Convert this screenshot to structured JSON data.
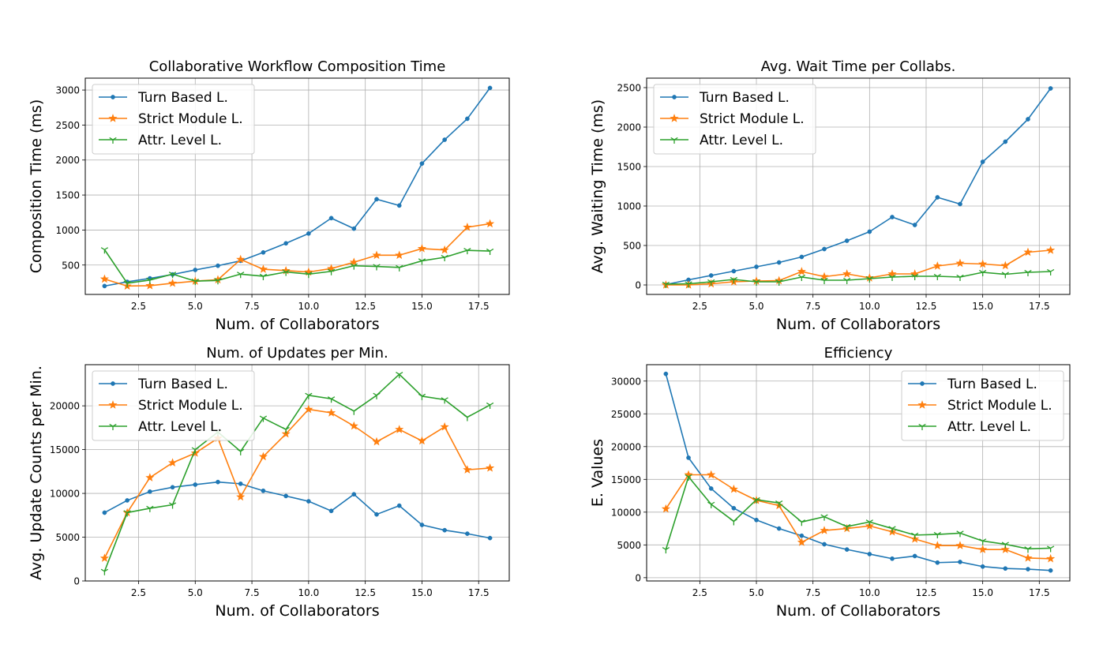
{
  "chart_data": [
    {
      "type": "line",
      "title": "Collaborative Workflow Composition Time",
      "xlabel": "Num. of Collaborators",
      "ylabel": "Composition Time (ms)",
      "xlim": [
        0.15,
        18.85
      ],
      "ylim": [
        80,
        3170
      ],
      "xticks": [
        2.5,
        5.0,
        7.5,
        10.0,
        12.5,
        15.0,
        17.5
      ],
      "yticks": [
        500,
        1000,
        1500,
        2000,
        2500,
        3000
      ],
      "grid": true,
      "legend": "top-left",
      "x": [
        1,
        2,
        3,
        4,
        5,
        6,
        7,
        8,
        9,
        10,
        11,
        12,
        13,
        14,
        15,
        16,
        17,
        18
      ],
      "series": [
        {
          "name": "Turn Based L.",
          "color": "#1f77b4",
          "marker": "dot",
          "values": [
            200,
            260,
            310,
            365,
            430,
            490,
            560,
            680,
            810,
            950,
            1170,
            1020,
            1440,
            1350,
            1950,
            2290,
            2590,
            3030
          ]
        },
        {
          "name": "Strict Module L.",
          "color": "#ff7f0e",
          "marker": "star",
          "values": [
            300,
            200,
            205,
            240,
            270,
            290,
            580,
            440,
            420,
            400,
            450,
            540,
            640,
            640,
            735,
            715,
            1040,
            1090
          ]
        },
        {
          "name": "Attr. Level L.",
          "color": "#2ca02c",
          "marker": "tri",
          "values": [
            720,
            240,
            285,
            370,
            270,
            280,
            370,
            340,
            400,
            370,
            410,
            490,
            480,
            465,
            560,
            610,
            710,
            700
          ]
        }
      ]
    },
    {
      "type": "line",
      "title": "Avg. Wait Time per Collabs.",
      "xlabel": "Num. of Collaborators",
      "ylabel": "Avg. Waiting Time (ms)",
      "xlim": [
        0.15,
        18.85
      ],
      "ylim": [
        -120,
        2620
      ],
      "xticks": [
        2.5,
        5.0,
        7.5,
        10.0,
        12.5,
        15.0,
        17.5
      ],
      "yticks": [
        0,
        500,
        1000,
        1500,
        2000,
        2500
      ],
      "grid": true,
      "legend": "top-left",
      "x": [
        1,
        2,
        3,
        4,
        5,
        6,
        7,
        8,
        9,
        10,
        11,
        12,
        13,
        14,
        15,
        16,
        17,
        18
      ],
      "series": [
        {
          "name": "Turn Based L.",
          "color": "#1f77b4",
          "marker": "dot",
          "values": [
            5,
            65,
            120,
            175,
            230,
            285,
            355,
            455,
            560,
            675,
            860,
            760,
            1110,
            1025,
            1560,
            1815,
            2100,
            2490
          ]
        },
        {
          "name": "Strict Module L.",
          "color": "#ff7f0e",
          "marker": "star",
          "values": [
            0,
            0,
            15,
            40,
            50,
            55,
            170,
            105,
            140,
            90,
            140,
            140,
            240,
            275,
            265,
            245,
            415,
            440
          ]
        },
        {
          "name": "Attr. Level L.",
          "color": "#2ca02c",
          "marker": "tri",
          "values": [
            10,
            15,
            40,
            70,
            40,
            40,
            100,
            60,
            60,
            80,
            100,
            110,
            110,
            100,
            160,
            135,
            160,
            170
          ]
        }
      ]
    },
    {
      "type": "line",
      "title": "Num. of Updates per Min.",
      "xlabel": "Num. of Collaborators",
      "ylabel": "Avg. Update Counts per Min.",
      "xlim": [
        0.15,
        18.85
      ],
      "ylim": [
        0,
        24700
      ],
      "xticks": [
        2.5,
        5.0,
        7.5,
        10.0,
        12.5,
        15.0,
        17.5
      ],
      "yticks": [
        0,
        5000,
        10000,
        15000,
        20000
      ],
      "grid": true,
      "legend": "top-left",
      "x": [
        1,
        2,
        3,
        4,
        5,
        6,
        7,
        8,
        9,
        10,
        11,
        12,
        13,
        14,
        15,
        16,
        17,
        18
      ],
      "series": [
        {
          "name": "Turn Based L.",
          "color": "#1f77b4",
          "marker": "dot",
          "values": [
            7800,
            9200,
            10200,
            10700,
            11000,
            11300,
            11100,
            10300,
            9700,
            9100,
            8000,
            9900,
            7600,
            8600,
            6400,
            5800,
            5400,
            4900
          ]
        },
        {
          "name": "Strict Module L.",
          "color": "#ff7f0e",
          "marker": "star",
          "values": [
            2600,
            7800,
            11800,
            13500,
            14600,
            16300,
            9600,
            14200,
            16800,
            19600,
            19200,
            17700,
            15900,
            17300,
            16000,
            17600,
            12700,
            12900
          ]
        },
        {
          "name": "Attr. Level L.",
          "color": "#2ca02c",
          "marker": "tri",
          "values": [
            1100,
            7800,
            8300,
            8700,
            15000,
            17000,
            14800,
            18600,
            17300,
            21200,
            20800,
            19400,
            21200,
            23600,
            21100,
            20700,
            18700,
            20100
          ]
        }
      ]
    },
    {
      "type": "line",
      "title": "Efficiency",
      "xlabel": "Num. of Collaborators",
      "ylabel": "E. Values",
      "xlim": [
        0.15,
        18.85
      ],
      "ylim": [
        -500,
        32500
      ],
      "xticks": [
        2.5,
        5.0,
        7.5,
        10.0,
        12.5,
        15.0,
        17.5
      ],
      "yticks": [
        0,
        5000,
        10000,
        15000,
        20000,
        25000,
        30000
      ],
      "grid": true,
      "legend": "top-right",
      "x": [
        1,
        2,
        3,
        4,
        5,
        6,
        7,
        8,
        9,
        10,
        11,
        12,
        13,
        14,
        15,
        16,
        17,
        18
      ],
      "series": [
        {
          "name": "Turn Based L.",
          "color": "#1f77b4",
          "marker": "dot",
          "values": [
            31100,
            18300,
            13600,
            10600,
            8800,
            7500,
            6400,
            5100,
            4300,
            3600,
            2900,
            3300,
            2300,
            2400,
            1700,
            1400,
            1300,
            1100
          ]
        },
        {
          "name": "Strict Module L.",
          "color": "#ff7f0e",
          "marker": "star",
          "values": [
            10500,
            15700,
            15700,
            13500,
            11800,
            11000,
            5400,
            7200,
            7500,
            7900,
            7000,
            5900,
            4900,
            4900,
            4300,
            4300,
            3000,
            2900
          ]
        },
        {
          "name": "Attr. Level L.",
          "color": "#2ca02c",
          "marker": "tri",
          "values": [
            4300,
            15400,
            11200,
            8600,
            11900,
            11400,
            8500,
            9300,
            7800,
            8500,
            7500,
            6500,
            6600,
            6800,
            5600,
            5100,
            4400,
            4500
          ]
        }
      ]
    }
  ]
}
